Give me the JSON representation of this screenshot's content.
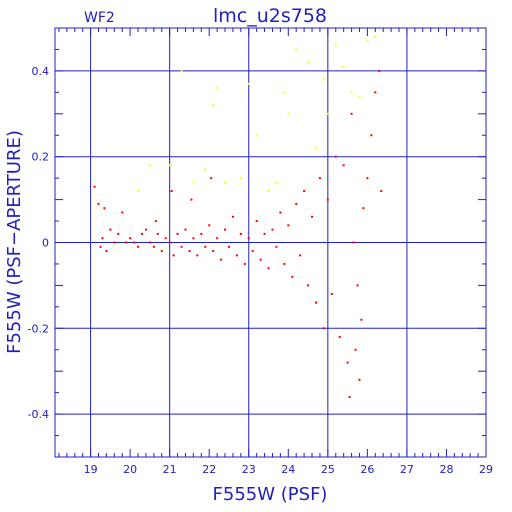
{
  "chart_data": {
    "type": "scatter",
    "title": "lmc_u2s758",
    "subtitle": "WF2",
    "xlabel": "F555W (PSF)",
    "ylabel": "F555W (PSF−APERTURE)",
    "xlim": [
      18.1,
      29.0
    ],
    "ylim": [
      -0.5,
      0.5
    ],
    "x_ticks": [
      19,
      20,
      21,
      22,
      23,
      24,
      25,
      26,
      27,
      28,
      29
    ],
    "y_ticks": [
      -0.4,
      -0.2,
      0,
      0.2,
      0.4
    ],
    "grid": true,
    "colors": {
      "axes": "#2020c0",
      "main_series": "#ff0000",
      "secondary_series": "#ffff00"
    },
    "series": [
      {
        "color": "#ff0000",
        "points": [
          [
            19.1,
            0.13
          ],
          [
            19.2,
            0.09
          ],
          [
            19.25,
            -0.01
          ],
          [
            19.3,
            0.01
          ],
          [
            19.35,
            0.08
          ],
          [
            19.4,
            -0.02
          ],
          [
            19.5,
            0.03
          ],
          [
            19.6,
            0.0
          ],
          [
            19.7,
            0.02
          ],
          [
            19.8,
            0.07
          ],
          [
            19.9,
            0.0
          ],
          [
            20.0,
            0.01
          ],
          [
            20.1,
            0.0
          ],
          [
            20.2,
            -0.01
          ],
          [
            20.3,
            0.02
          ],
          [
            20.4,
            0.03
          ],
          [
            20.5,
            0.0
          ],
          [
            20.6,
            -0.01
          ],
          [
            20.65,
            0.05
          ],
          [
            20.7,
            0.02
          ],
          [
            20.8,
            -0.02
          ],
          [
            20.9,
            0.01
          ],
          [
            21.0,
            0.0
          ],
          [
            21.05,
            0.12
          ],
          [
            21.1,
            -0.03
          ],
          [
            21.2,
            0.02
          ],
          [
            21.3,
            -0.01
          ],
          [
            21.4,
            0.03
          ],
          [
            21.5,
            -0.02
          ],
          [
            21.55,
            0.1
          ],
          [
            21.6,
            0.01
          ],
          [
            21.7,
            -0.03
          ],
          [
            21.8,
            0.02
          ],
          [
            21.9,
            -0.01
          ],
          [
            22.0,
            0.04
          ],
          [
            22.05,
            0.15
          ],
          [
            22.1,
            -0.02
          ],
          [
            22.2,
            0.01
          ],
          [
            22.3,
            -0.04
          ],
          [
            22.4,
            0.03
          ],
          [
            22.5,
            -0.01
          ],
          [
            22.6,
            0.06
          ],
          [
            22.7,
            -0.03
          ],
          [
            22.8,
            0.02
          ],
          [
            22.9,
            -0.05
          ],
          [
            23.0,
            0.01
          ],
          [
            23.1,
            -0.02
          ],
          [
            23.2,
            0.05
          ],
          [
            23.3,
            -0.04
          ],
          [
            23.4,
            0.02
          ],
          [
            23.5,
            -0.06
          ],
          [
            23.6,
            0.03
          ],
          [
            23.7,
            -0.01
          ],
          [
            23.8,
            0.07
          ],
          [
            23.9,
            -0.05
          ],
          [
            24.0,
            0.04
          ],
          [
            24.1,
            -0.08
          ],
          [
            24.2,
            0.09
          ],
          [
            24.3,
            -0.03
          ],
          [
            24.4,
            0.12
          ],
          [
            24.5,
            -0.1
          ],
          [
            24.6,
            0.06
          ],
          [
            24.7,
            -0.14
          ],
          [
            24.8,
            0.15
          ],
          [
            24.9,
            -0.2
          ],
          [
            25.0,
            0.1
          ],
          [
            25.1,
            -0.12
          ],
          [
            25.2,
            0.2
          ],
          [
            25.3,
            -0.22
          ],
          [
            25.4,
            0.18
          ],
          [
            25.5,
            -0.28
          ],
          [
            25.6,
            0.3
          ],
          [
            25.7,
            -0.25
          ],
          [
            25.8,
            -0.32
          ],
          [
            25.9,
            0.08
          ],
          [
            26.0,
            0.15
          ],
          [
            26.1,
            0.25
          ],
          [
            26.2,
            0.35
          ],
          [
            26.3,
            0.4
          ],
          [
            26.35,
            0.12
          ],
          [
            25.55,
            -0.36
          ],
          [
            25.65,
            0.0
          ],
          [
            25.75,
            -0.1
          ],
          [
            25.85,
            -0.18
          ]
        ]
      },
      {
        "color": "#ffff00",
        "points": [
          [
            20.2,
            0.12
          ],
          [
            20.5,
            0.18
          ],
          [
            21.0,
            0.18
          ],
          [
            21.3,
            0.4
          ],
          [
            21.6,
            0.14
          ],
          [
            21.9,
            0.17
          ],
          [
            22.1,
            0.32
          ],
          [
            22.2,
            0.36
          ],
          [
            22.4,
            0.14
          ],
          [
            22.8,
            0.15
          ],
          [
            23.0,
            0.37
          ],
          [
            23.2,
            0.25
          ],
          [
            23.5,
            0.12
          ],
          [
            23.7,
            0.14
          ],
          [
            23.9,
            0.35
          ],
          [
            24.0,
            0.3
          ],
          [
            24.2,
            0.45
          ],
          [
            24.5,
            0.42
          ],
          [
            24.7,
            0.22
          ],
          [
            24.9,
            0.38
          ],
          [
            25.0,
            0.3
          ],
          [
            25.2,
            0.46
          ],
          [
            25.4,
            0.41
          ],
          [
            25.6,
            0.35
          ],
          [
            25.8,
            0.34
          ],
          [
            26.0,
            0.47
          ],
          [
            26.2,
            0.48
          ]
        ]
      }
    ]
  }
}
